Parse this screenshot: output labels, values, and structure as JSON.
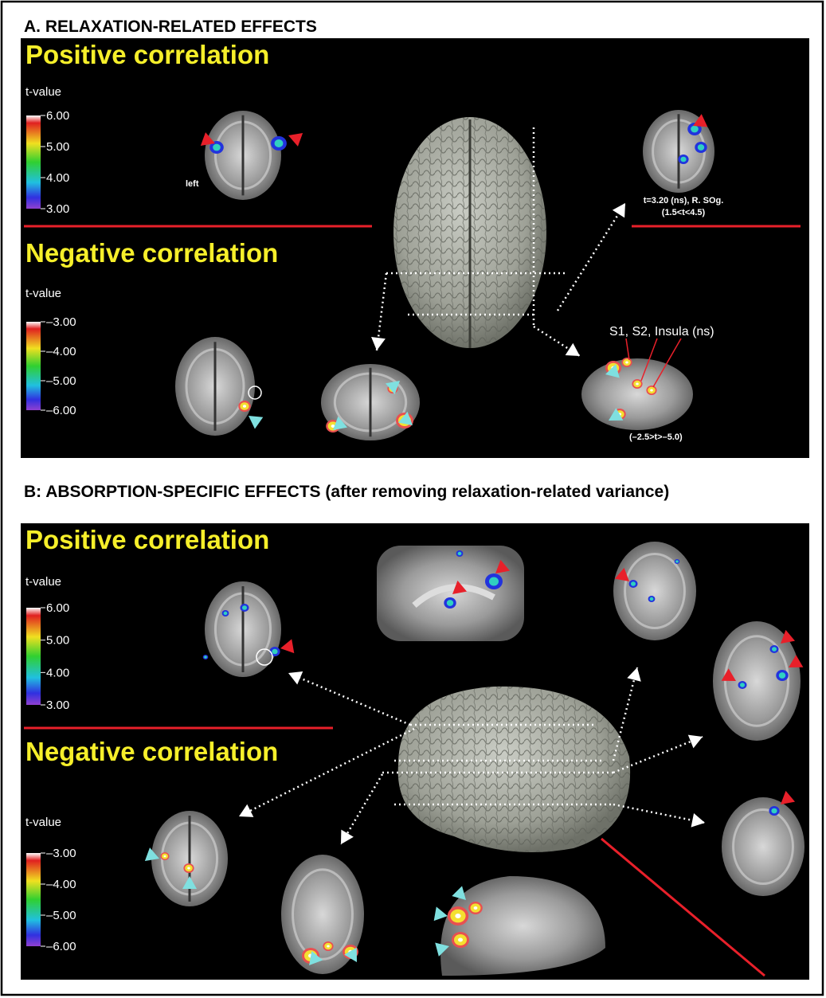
{
  "panel_a": {
    "title": "A. RELAXATION-RELATED EFFECTS",
    "positive": {
      "heading": "Positive correlation",
      "scale_label": "t-value",
      "scale_ticks": [
        "6.00",
        "5.00",
        "4.00",
        "3.00"
      ],
      "side_label": "left",
      "annotation": [
        "t=3.20 (ns), R. SOg.",
        "(1.5<t<4.5)"
      ]
    },
    "negative": {
      "heading": "Negative correlation",
      "scale_label": "t-value",
      "scale_ticks": [
        "–3.00",
        "–4.00",
        "–5.00",
        "–6.00"
      ],
      "annotation": "S1, S2, Insula (ns)",
      "range_label": "(–2.5>t>–5.0)"
    }
  },
  "panel_b": {
    "title": "B: ABSORPTION-SPECIFIC EFFECTS (after removing relaxation-related variance)",
    "positive": {
      "heading": "Positive correlation",
      "scale_label": "t-value",
      "scale_ticks": [
        "6.00",
        "5.00",
        "4.00",
        "3.00"
      ]
    },
    "negative": {
      "heading": "Negative correlation",
      "scale_label": "t-value",
      "scale_ticks": [
        "–3.00",
        "–4.00",
        "–5.00",
        "–6.00"
      ]
    }
  }
}
